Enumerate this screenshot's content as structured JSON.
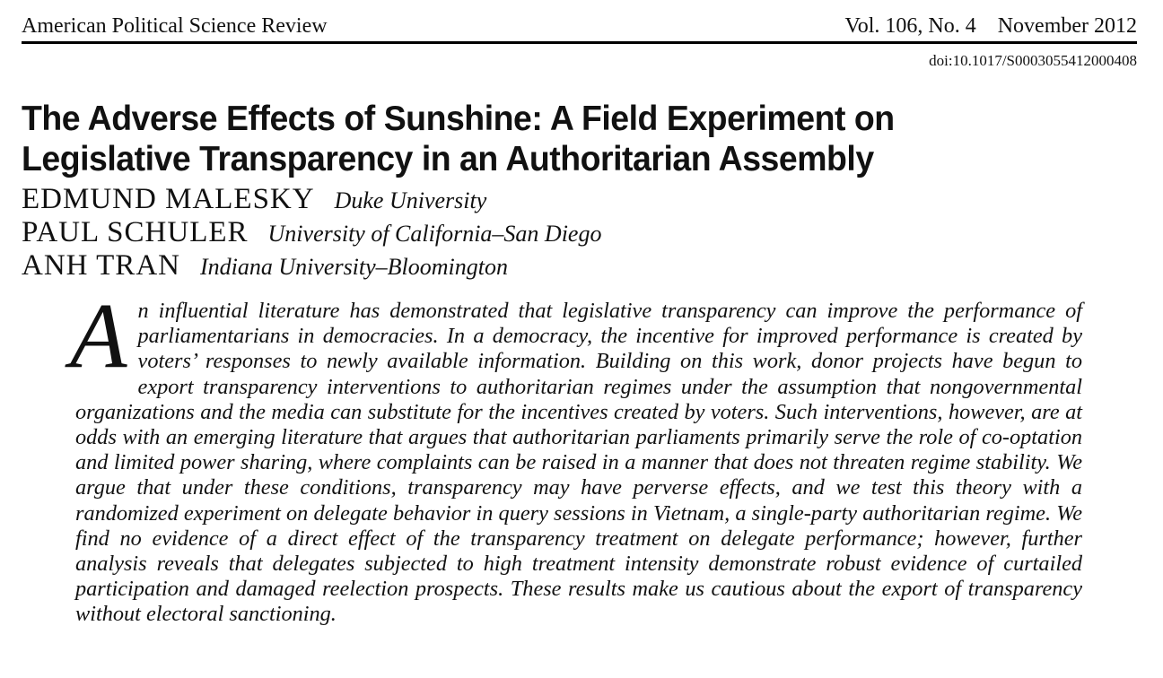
{
  "header": {
    "journal": "American Political Science Review",
    "volume": "Vol. 106, No. 4",
    "date": "November 2012",
    "doi": "doi:10.1017/S0003055412000408"
  },
  "article": {
    "title": "The Adverse Effects of Sunshine: A Field Experiment on Legislative Transparency in an Authoritarian Assembly",
    "authors": [
      {
        "name": "EDMUND MALESKY",
        "affiliation": "Duke University"
      },
      {
        "name": "PAUL SCHULER",
        "affiliation": "University of California–San Diego"
      },
      {
        "name": "ANH TRAN",
        "affiliation": "Indiana University–Bloomington"
      }
    ],
    "abstract_dropcap": "A",
    "abstract_text": "n influential literature has demonstrated that legislative transparency can improve the performance of parliamentarians in democracies. In a democracy, the incentive for improved performance is created by voters’ responses to newly available information. Building on this work, donor projects have begun to export transparency interventions to authoritarian regimes under the assumption that nongovernmental organizations and the media can substitute for the incentives created by voters. Such interventions, however, are at odds with an emerging literature that argues that authoritarian parliaments primarily serve the role of co-optation and limited power sharing, where complaints can be raised in a manner that does not threaten regime stability. We argue that under these conditions, transparency may have perverse effects, and we test this theory with a randomized experiment on delegate behavior in query sessions in Vietnam, a single-party authoritarian regime. We find no evidence of a direct effect of the transparency treatment on delegate performance; however, further analysis reveals that delegates subjected to high treatment intensity demonstrate robust evidence of curtailed participation and damaged reelection prospects. These results make us cautious about the export of transparency without electoral sanctioning."
  }
}
